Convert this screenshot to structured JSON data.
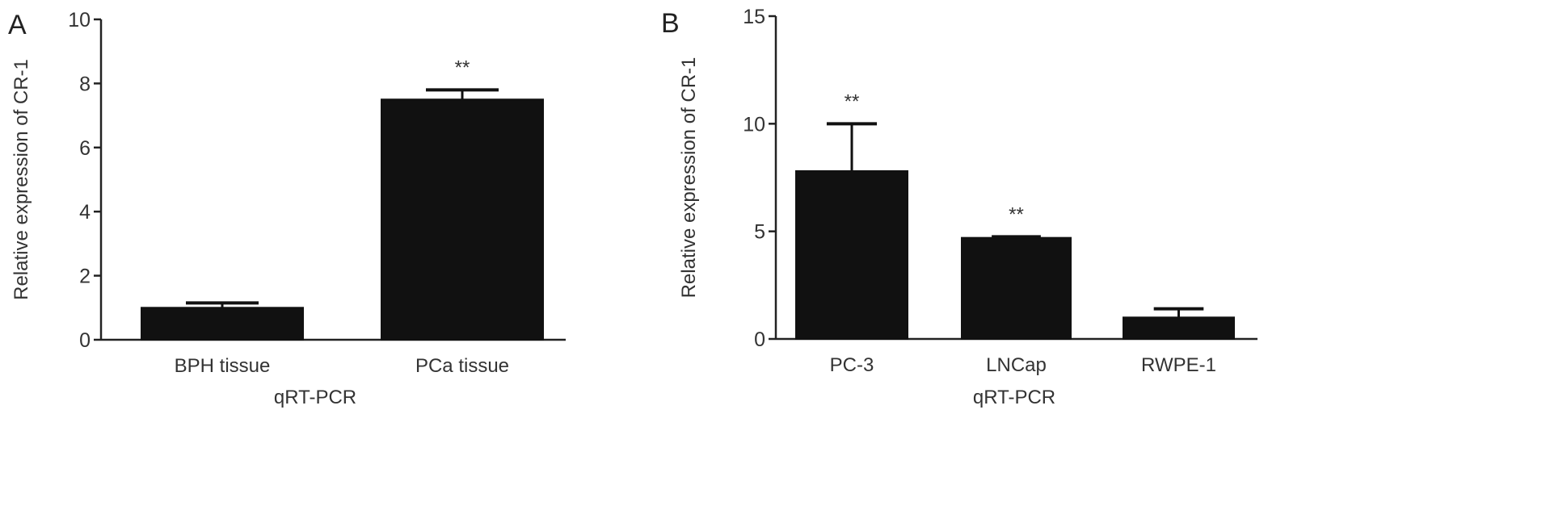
{
  "chart_data": [
    {
      "panel_label": "A",
      "type": "bar",
      "xlabel": "qRT-PCR",
      "ylabel": "Relative expression of CR-1",
      "ylim": [
        0,
        10
      ],
      "yticks": [
        "0",
        "2",
        "4",
        "6",
        "8",
        "10"
      ],
      "grid": false,
      "categories": [
        "BPH tissue",
        "PCa tissue"
      ],
      "values": [
        1.0,
        7.5
      ],
      "error_upper": [
        1.15,
        7.8
      ],
      "annotations": [
        "",
        "**"
      ],
      "bar_color": "#111111"
    },
    {
      "panel_label": "B",
      "type": "bar",
      "xlabel": "qRT-PCR",
      "ylabel": "Relative expression of CR-1",
      "ylim": [
        0,
        15
      ],
      "yticks": [
        "0",
        "5",
        "10",
        "15"
      ],
      "grid": false,
      "categories": [
        "PC-3",
        "LNCap",
        "RWPE-1"
      ],
      "values": [
        7.8,
        4.7,
        1.0
      ],
      "error_upper": [
        10.0,
        4.75,
        1.4
      ],
      "annotations": [
        "**",
        "**",
        ""
      ],
      "bar_color": "#111111"
    }
  ]
}
